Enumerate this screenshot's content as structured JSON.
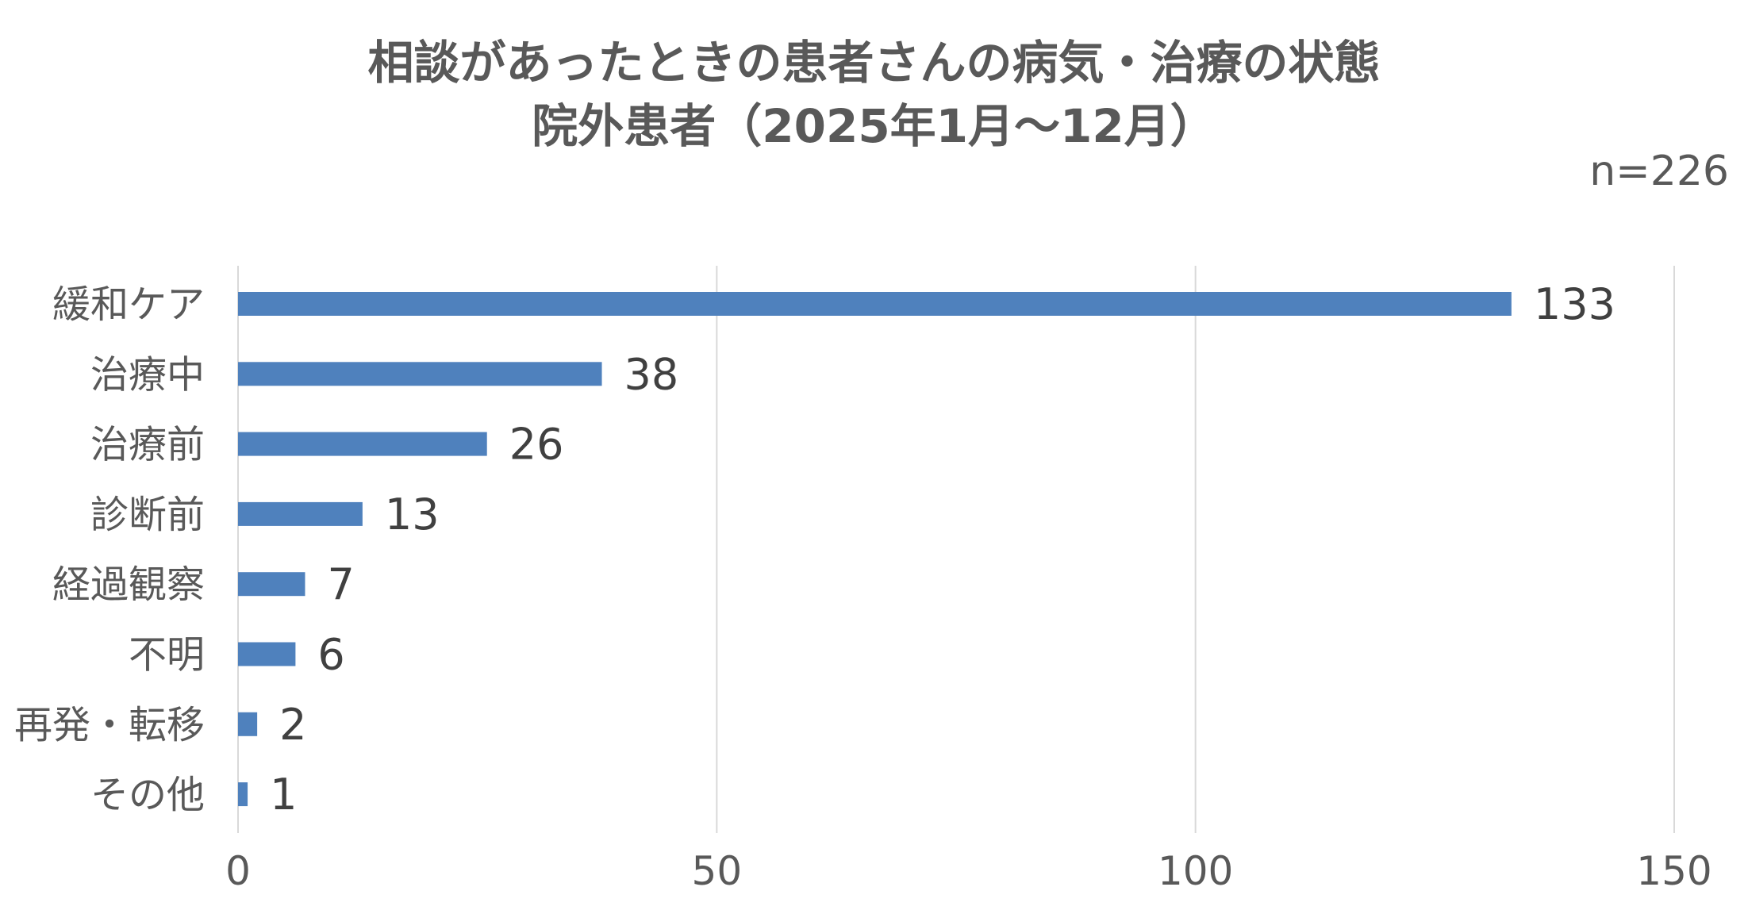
{
  "chart_data": {
    "type": "bar",
    "orientation": "horizontal",
    "title": "相談があったときの患者さんの病気・治療の状態",
    "subtitle": "院外患者（2025年1月～12月）",
    "sample_size": "n=226",
    "categories": [
      "緩和ケア",
      "治療中",
      "治療前",
      "診断前",
      "経過観察",
      "不明",
      "再発・転移",
      "その他"
    ],
    "values": [
      133,
      38,
      26,
      13,
      7,
      6,
      2,
      1
    ],
    "xlim": [
      0,
      150
    ],
    "x_ticks": [
      0,
      50,
      100,
      150
    ],
    "xlabel": "",
    "ylabel": "",
    "grid": true,
    "data_labels": true,
    "legend": false,
    "colors": {
      "bar": "#4F81BD",
      "text": "#595959",
      "grid": "#D9D9D9"
    }
  }
}
